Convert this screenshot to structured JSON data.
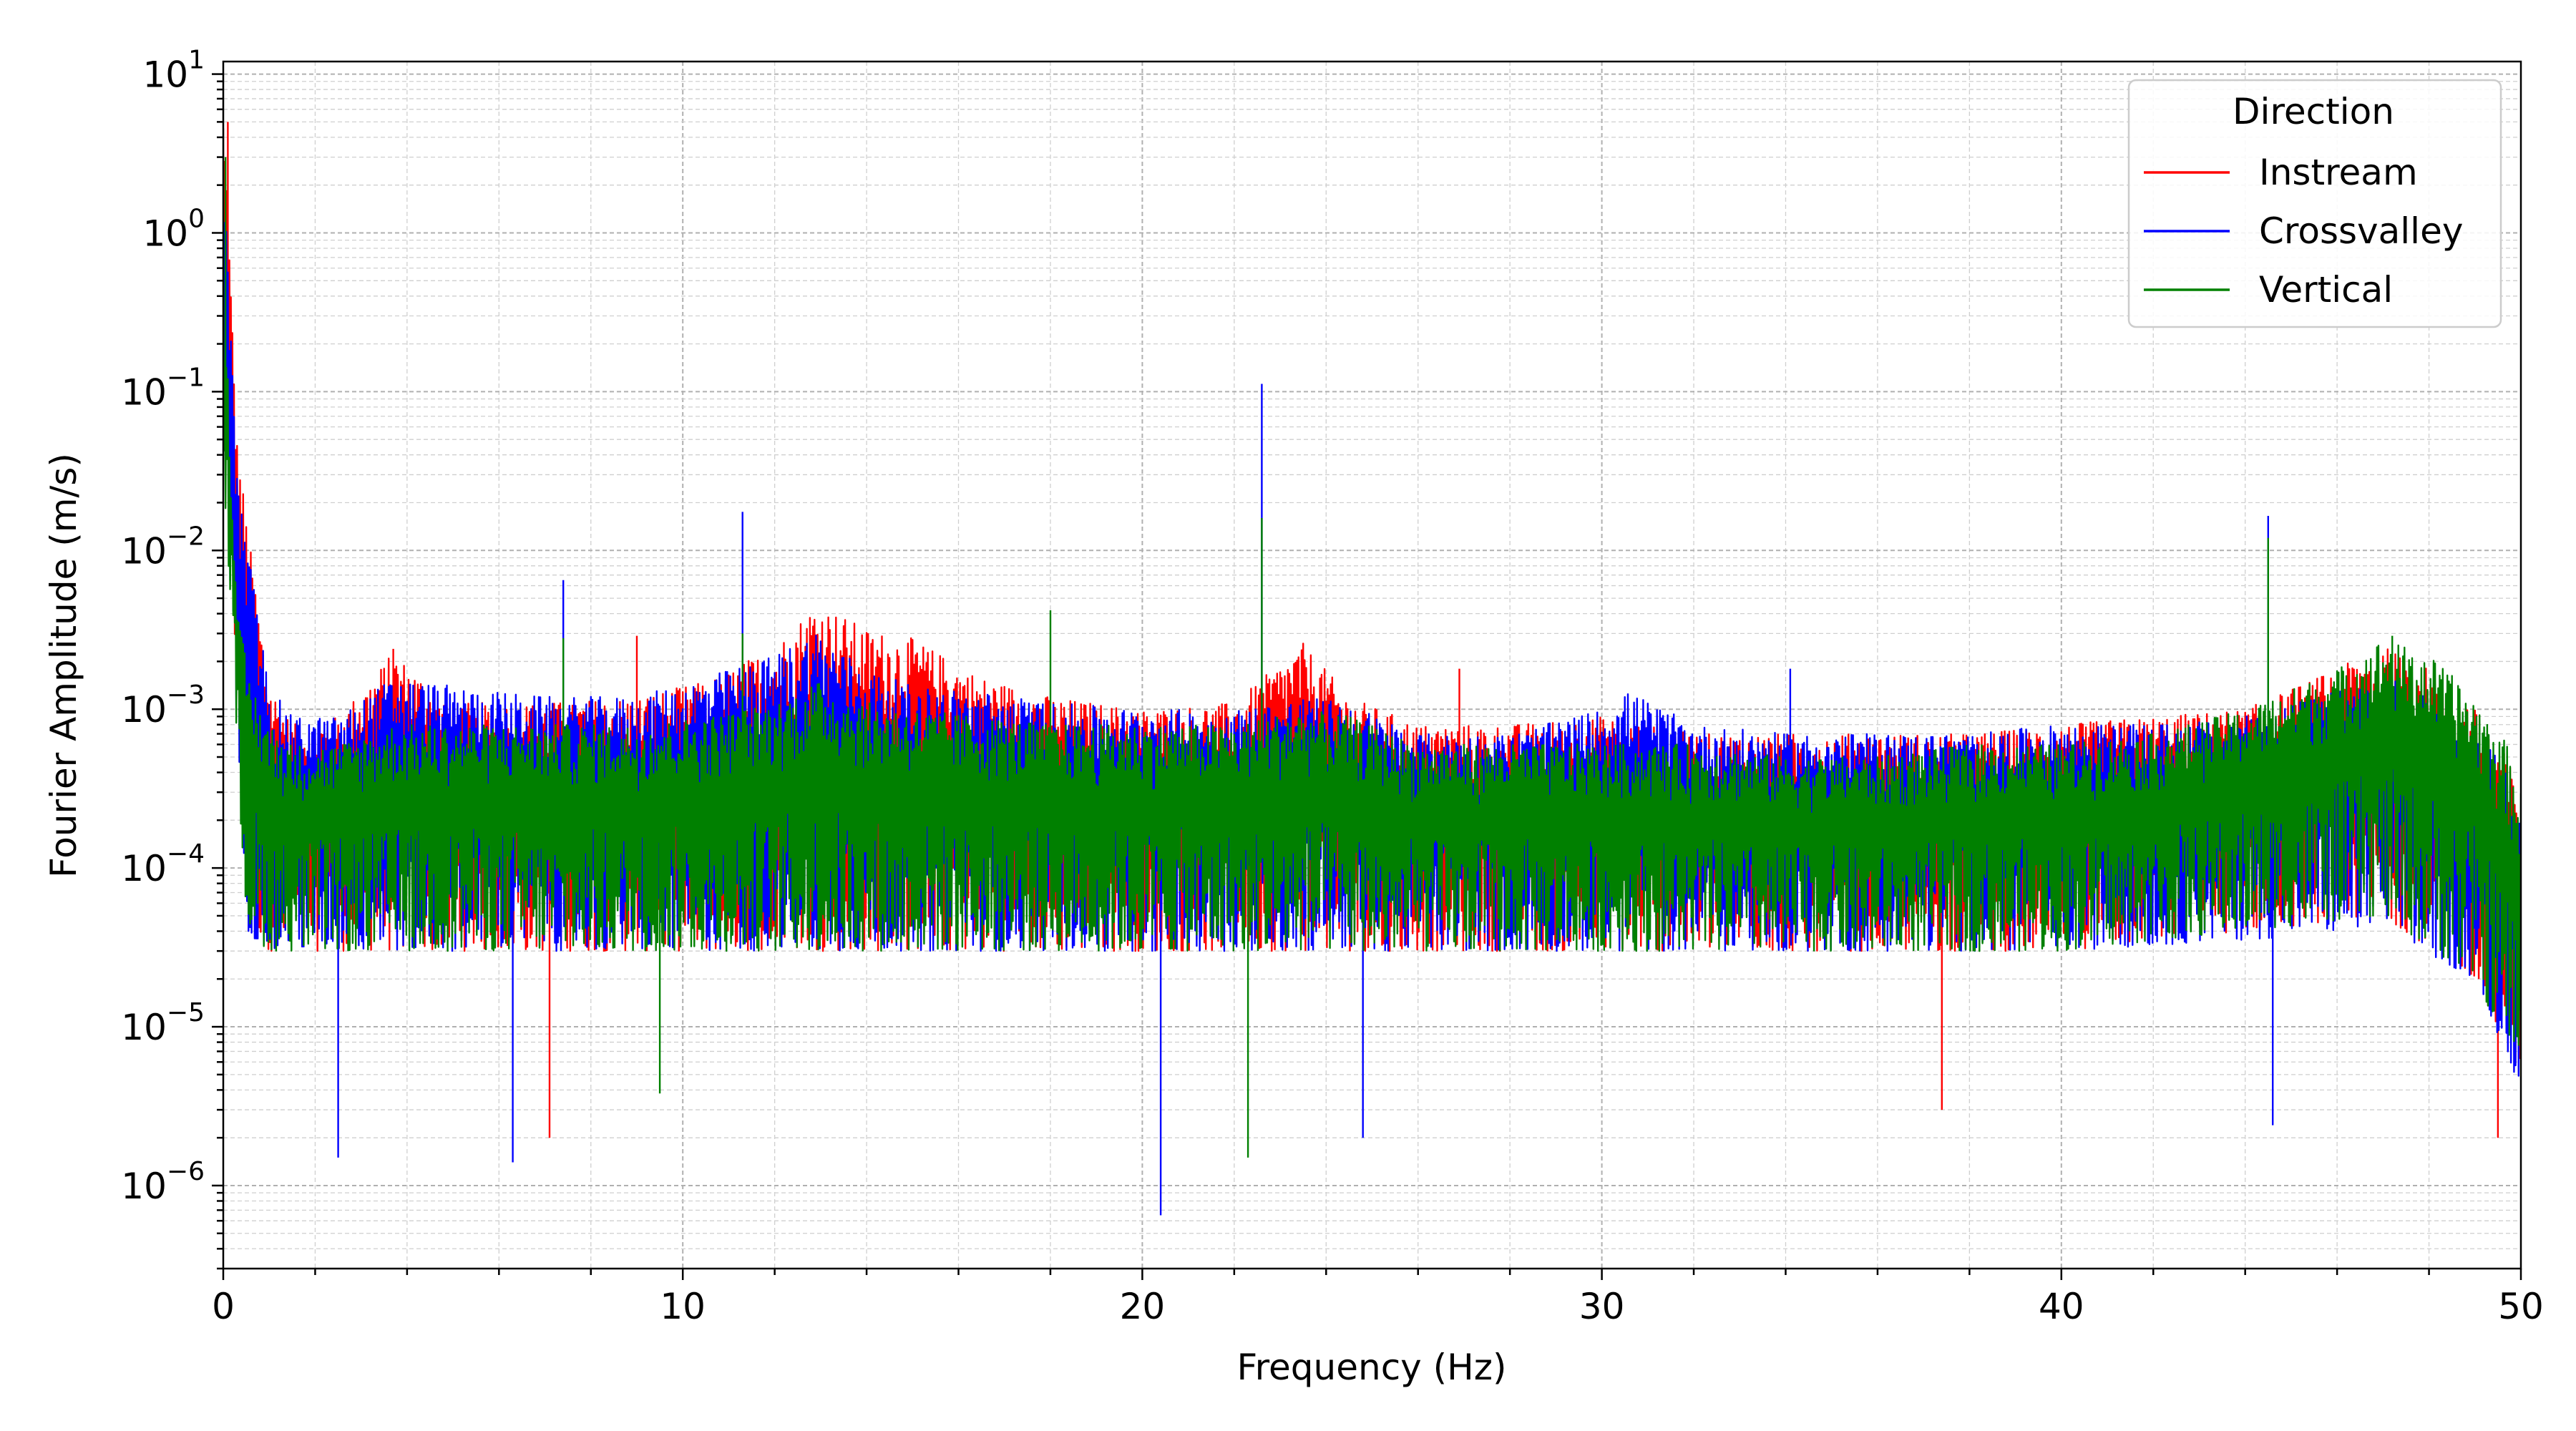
{
  "chart_data": {
    "type": "line",
    "xlabel": "Frequency (Hz)",
    "ylabel": "Fourier Amplitude (m/s)",
    "x_scale": "linear",
    "y_scale": "log",
    "xlim": [
      0,
      50
    ],
    "ylim": [
      3e-07,
      12
    ],
    "x_ticks": [
      0,
      10,
      20,
      30,
      40,
      50
    ],
    "y_tick_exponents": [
      -6,
      -5,
      -4,
      -3,
      -2,
      -1,
      0,
      1
    ],
    "grid": "major and minor, dashed gray",
    "legend": {
      "title": "Direction",
      "placement": "top-right",
      "entries": [
        "Instream",
        "Crossvalley",
        "Vertical"
      ]
    },
    "series": [
      {
        "name": "Instream",
        "color": "#ff0000",
        "upper_envelope": [
          [
            0.0,
            6.0
          ],
          [
            0.1,
            1.5
          ],
          [
            0.3,
            0.05
          ],
          [
            0.6,
            0.01
          ],
          [
            1.0,
            0.0015
          ],
          [
            1.5,
            0.0008
          ],
          [
            2.5,
            0.0009
          ],
          [
            3.7,
            0.0023
          ],
          [
            5.0,
            0.0011
          ],
          [
            7.0,
            0.0011
          ],
          [
            9.0,
            0.0012
          ],
          [
            10.5,
            0.0015
          ],
          [
            12.0,
            0.0025
          ],
          [
            12.9,
            0.0048
          ],
          [
            14.0,
            0.0032
          ],
          [
            15.0,
            0.0028
          ],
          [
            16.5,
            0.0016
          ],
          [
            18.0,
            0.0012
          ],
          [
            20.0,
            0.001
          ],
          [
            22.0,
            0.0011
          ],
          [
            23.5,
            0.0026
          ],
          [
            24.5,
            0.0012
          ],
          [
            26.0,
            0.0008
          ],
          [
            28.0,
            0.0008
          ],
          [
            30.0,
            0.0009
          ],
          [
            32.0,
            0.0007
          ],
          [
            34.0,
            0.0007
          ],
          [
            36.0,
            0.0007
          ],
          [
            38.0,
            0.0007
          ],
          [
            40.0,
            0.0008
          ],
          [
            42.0,
            0.0009
          ],
          [
            44.0,
            0.001
          ],
          [
            46.0,
            0.0018
          ],
          [
            47.0,
            0.0025
          ],
          [
            48.0,
            0.0018
          ],
          [
            49.0,
            0.001
          ],
          [
            49.7,
            0.0005
          ],
          [
            50.0,
            0.0003
          ]
        ],
        "lower_envelope": [
          [
            0.0,
            0.1
          ],
          [
            0.5,
            5e-05
          ],
          [
            1.0,
            3e-05
          ],
          [
            3.0,
            3e-05
          ],
          [
            10.0,
            3e-05
          ],
          [
            20.0,
            3e-05
          ],
          [
            30.0,
            3e-05
          ],
          [
            40.0,
            3e-05
          ],
          [
            47.0,
            5e-05
          ],
          [
            49.0,
            2e-05
          ],
          [
            50.0,
            5e-06
          ]
        ],
        "spikes": [
          [
            0.1,
            5.0
          ],
          [
            3.7,
            0.0024
          ],
          [
            7.1,
            2e-06
          ],
          [
            9.0,
            0.0029
          ],
          [
            26.9,
            0.0018
          ],
          [
            37.4,
            3e-06
          ],
          [
            49.5,
            2e-06
          ]
        ]
      },
      {
        "name": "Crossvalley",
        "color": "#0000ff",
        "upper_envelope": [
          [
            0.0,
            2.0
          ],
          [
            0.1,
            0.8
          ],
          [
            0.3,
            0.03
          ],
          [
            0.6,
            0.008
          ],
          [
            1.0,
            0.0014
          ],
          [
            1.5,
            0.0009
          ],
          [
            2.5,
            0.0009
          ],
          [
            3.7,
            0.0016
          ],
          [
            5.0,
            0.0014
          ],
          [
            7.0,
            0.0012
          ],
          [
            9.0,
            0.0012
          ],
          [
            10.5,
            0.0016
          ],
          [
            12.0,
            0.0022
          ],
          [
            12.9,
            0.0032
          ],
          [
            14.0,
            0.0018
          ],
          [
            15.0,
            0.0014
          ],
          [
            16.5,
            0.0013
          ],
          [
            18.0,
            0.0011
          ],
          [
            20.0,
            0.001
          ],
          [
            22.0,
            0.001
          ],
          [
            23.5,
            0.0012
          ],
          [
            24.5,
            0.0011
          ],
          [
            26.0,
            0.0007
          ],
          [
            28.0,
            0.0007
          ],
          [
            30.0,
            0.001
          ],
          [
            30.6,
            0.0013
          ],
          [
            32.0,
            0.0008
          ],
          [
            34.0,
            0.0007
          ],
          [
            36.0,
            0.0007
          ],
          [
            38.0,
            0.0007
          ],
          [
            40.0,
            0.0008
          ],
          [
            42.0,
            0.0008
          ],
          [
            44.0,
            0.0009
          ],
          [
            46.0,
            0.0013
          ],
          [
            47.0,
            0.0016
          ],
          [
            48.0,
            0.0013
          ],
          [
            49.0,
            0.0008
          ],
          [
            49.7,
            0.0004
          ],
          [
            50.0,
            0.0002
          ]
        ],
        "lower_envelope": [
          [
            0.0,
            0.05
          ],
          [
            0.5,
            4e-05
          ],
          [
            1.0,
            3e-05
          ],
          [
            3.0,
            3e-05
          ],
          [
            10.0,
            3e-05
          ],
          [
            20.0,
            3e-05
          ],
          [
            30.0,
            3e-05
          ],
          [
            40.0,
            3e-05
          ],
          [
            47.0,
            4e-05
          ],
          [
            49.0,
            2e-05
          ],
          [
            50.0,
            4e-06
          ]
        ],
        "spikes": [
          [
            0.2,
            0.11
          ],
          [
            2.5,
            1.5e-06
          ],
          [
            6.3,
            1.4e-06
          ],
          [
            7.4,
            0.0065
          ],
          [
            11.3,
            0.0175
          ],
          [
            20.4,
            6.5e-07
          ],
          [
            22.6,
            0.112
          ],
          [
            24.8,
            2e-06
          ],
          [
            34.1,
            0.0018
          ],
          [
            44.5,
            0.0165
          ],
          [
            44.6,
            2.4e-06
          ]
        ]
      },
      {
        "name": "Vertical",
        "color": "#008000",
        "upper_envelope": [
          [
            0.0,
            0.5
          ],
          [
            0.1,
            0.15
          ],
          [
            0.3,
            0.004
          ],
          [
            0.6,
            0.0015
          ],
          [
            1.0,
            0.0008
          ],
          [
            1.5,
            0.0006
          ],
          [
            2.5,
            0.0006
          ],
          [
            3.7,
            0.0008
          ],
          [
            5.0,
            0.0008
          ],
          [
            7.0,
            0.0008
          ],
          [
            9.0,
            0.0008
          ],
          [
            10.5,
            0.0009
          ],
          [
            12.0,
            0.0011
          ],
          [
            12.9,
            0.0015
          ],
          [
            14.0,
            0.0011
          ],
          [
            15.0,
            0.001
          ],
          [
            16.5,
            0.0009
          ],
          [
            18.0,
            0.0008
          ],
          [
            20.0,
            0.0008
          ],
          [
            22.0,
            0.0008
          ],
          [
            23.5,
            0.001
          ],
          [
            24.5,
            0.0009
          ],
          [
            26.0,
            0.0006
          ],
          [
            28.0,
            0.0006
          ],
          [
            30.0,
            0.0006
          ],
          [
            32.0,
            0.0006
          ],
          [
            34.0,
            0.0005
          ],
          [
            36.0,
            0.0005
          ],
          [
            38.0,
            0.0006
          ],
          [
            40.0,
            0.0006
          ],
          [
            42.0,
            0.0007
          ],
          [
            44.0,
            0.001
          ],
          [
            46.0,
            0.0018
          ],
          [
            47.0,
            0.0028
          ],
          [
            48.0,
            0.0022
          ],
          [
            49.0,
            0.0012
          ],
          [
            49.7,
            0.0006
          ],
          [
            50.0,
            0.0003
          ]
        ],
        "lower_envelope": [
          [
            0.0,
            0.03
          ],
          [
            0.5,
            4e-05
          ],
          [
            1.0,
            3e-05
          ],
          [
            3.0,
            3e-05
          ],
          [
            10.0,
            3e-05
          ],
          [
            20.0,
            3e-05
          ],
          [
            30.0,
            3e-05
          ],
          [
            40.0,
            3e-05
          ],
          [
            47.0,
            5e-05
          ],
          [
            49.0,
            2e-05
          ],
          [
            50.0,
            5e-06
          ]
        ],
        "spikes": [
          [
            0.05,
            3.0
          ],
          [
            7.4,
            0.0028
          ],
          [
            9.5,
            3.8e-06
          ],
          [
            11.3,
            0.003
          ],
          [
            18.0,
            0.0042
          ],
          [
            22.3,
            1.5e-06
          ],
          [
            22.6,
            0.016
          ],
          [
            44.5,
            0.012
          ],
          [
            47.2,
            0.0029
          ]
        ]
      }
    ]
  }
}
